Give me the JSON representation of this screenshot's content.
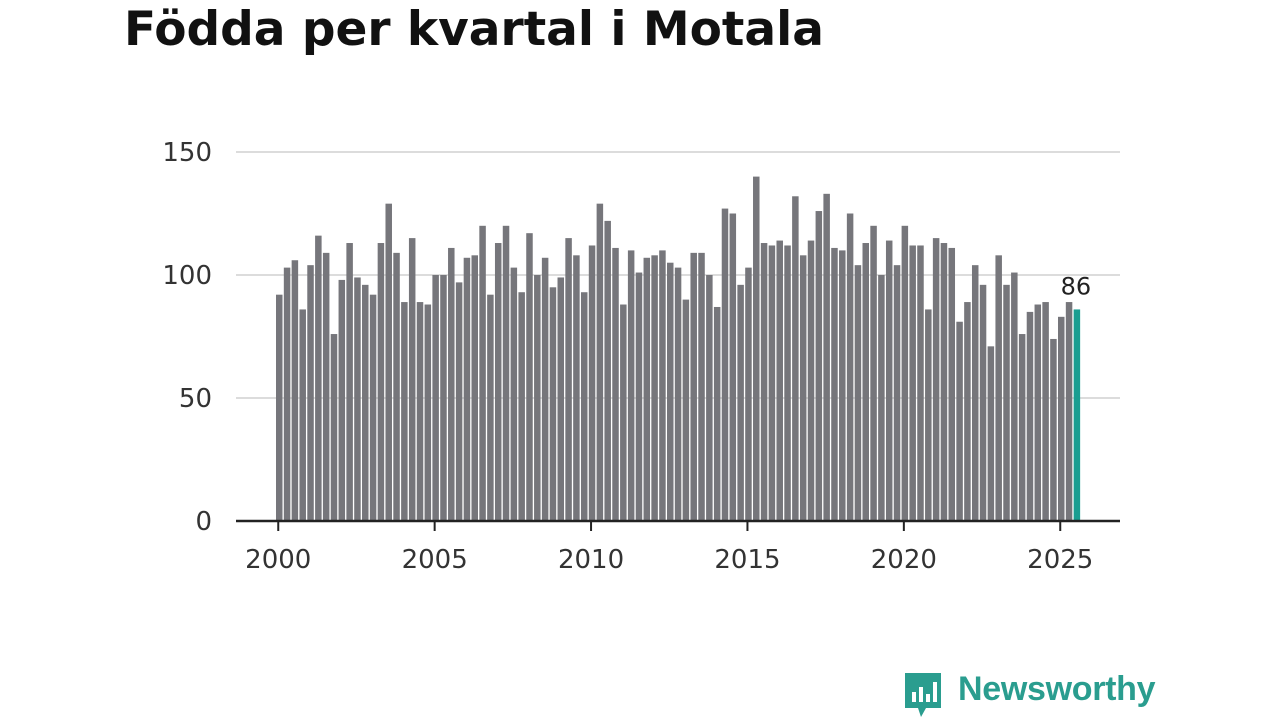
{
  "chart_data": {
    "type": "bar",
    "title": "Födda per kvartal i Motala",
    "xlabel": "",
    "ylabel": "",
    "ylim": [
      0,
      150
    ],
    "yticks": [
      0,
      50,
      100,
      150
    ],
    "xticks": [
      "2000",
      "2005",
      "2010",
      "2015",
      "2020",
      "2025"
    ],
    "x_start": "2000 Q1",
    "frequency": "quarterly",
    "grid": true,
    "colors": {
      "bars": "#76767b",
      "highlight": "#1a9e91",
      "grid": "#dcdcdc",
      "axis": "#222222"
    },
    "values": [
      92,
      103,
      106,
      86,
      104,
      116,
      109,
      76,
      98,
      113,
      99,
      96,
      92,
      113,
      129,
      109,
      89,
      115,
      89,
      88,
      100,
      100,
      111,
      97,
      107,
      108,
      120,
      92,
      113,
      120,
      103,
      93,
      117,
      100,
      107,
      95,
      99,
      115,
      108,
      93,
      112,
      129,
      122,
      111,
      88,
      110,
      101,
      107,
      108,
      110,
      105,
      103,
      90,
      109,
      109,
      100,
      87,
      127,
      125,
      96,
      103,
      140,
      113,
      112,
      114,
      112,
      132,
      108,
      114,
      126,
      133,
      111,
      110,
      125,
      104,
      113,
      120,
      100,
      114,
      104,
      120,
      112,
      112,
      86,
      115,
      113,
      111,
      81,
      89,
      104,
      96,
      71,
      108,
      96,
      101,
      76,
      85,
      88,
      89,
      74,
      83,
      89,
      86
    ],
    "highlight_last": true,
    "annotation": {
      "label": "86"
    }
  },
  "brand": {
    "name": "Newsworthy",
    "icon": "newsworthy-logo-icon",
    "color": "#2a9d8f"
  }
}
